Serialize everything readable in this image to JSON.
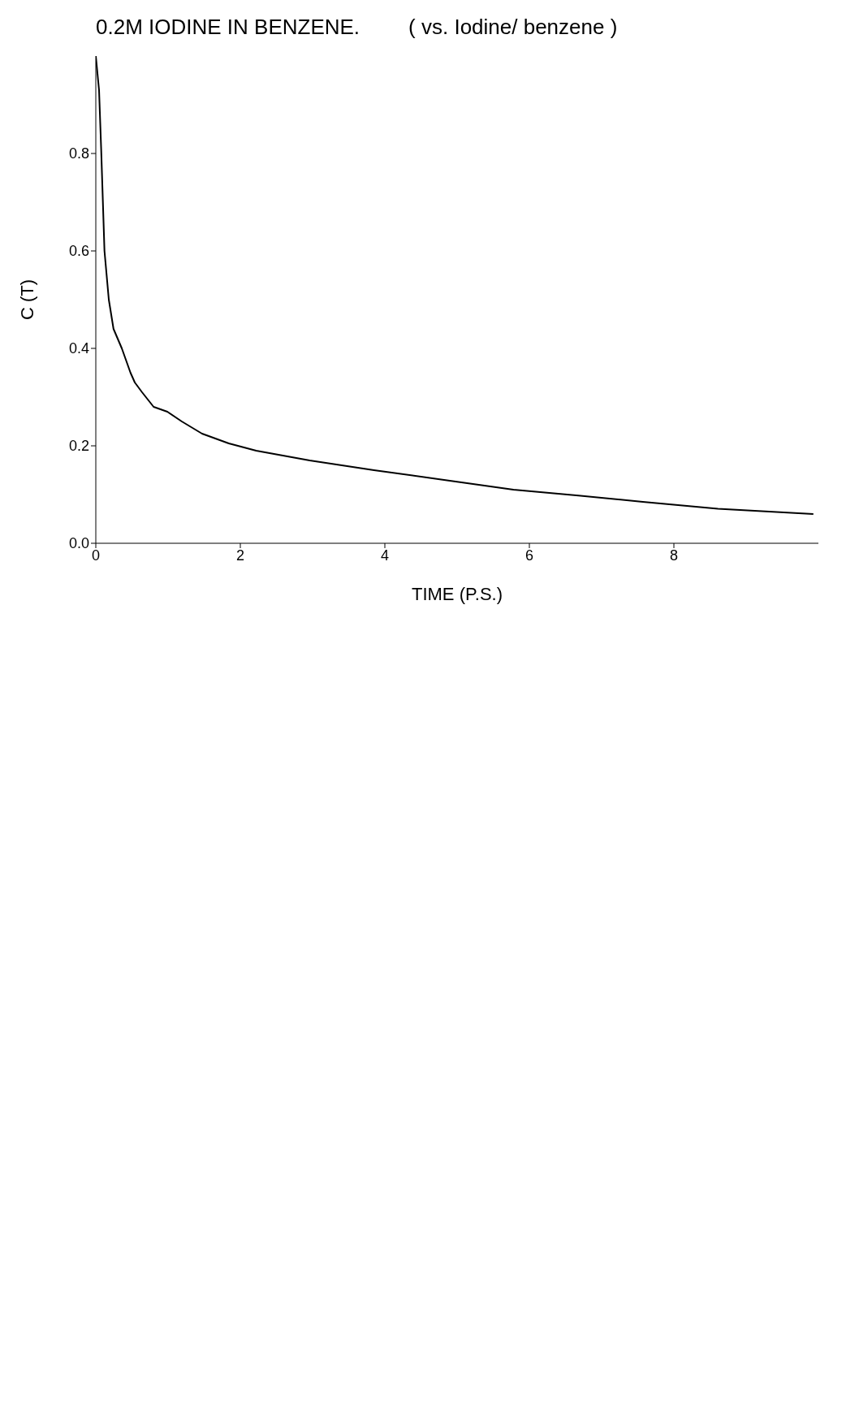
{
  "chart_data": {
    "type": "line",
    "title": "0.2M IODINE IN BENZENE.",
    "subtitle": "( vs. Iodine/ benzene )",
    "xlabel": "TIME (P.S.)",
    "ylabel": "C (T)",
    "x": [
      0,
      0.045,
      0.074,
      0.12,
      0.18,
      0.245,
      0.36,
      0.48,
      0.54,
      0.64,
      0.8,
      0.99,
      1.19,
      1.47,
      1.84,
      2.22,
      2.96,
      3.85,
      4.82,
      5.78,
      6.68,
      7.57,
      8.61,
      9.93
    ],
    "series": [
      {
        "color": "#000000",
        "values": [
          1.0,
          0.93,
          0.81,
          0.6,
          0.5,
          0.44,
          0.4,
          0.35,
          0.33,
          0.31,
          0.28,
          0.27,
          0.25,
          0.225,
          0.205,
          0.19,
          0.17,
          0.15,
          0.13,
          0.11,
          0.098,
          0.085,
          0.071,
          0.06
        ]
      }
    ],
    "xlim": [
      0,
      10
    ],
    "xticks": [
      0,
      2,
      4,
      6,
      8
    ],
    "ylim": [
      0,
      1
    ],
    "yticks": [
      {
        "value": 0,
        "label": "0.0"
      },
      {
        "value": 0.2,
        "label": "0.2"
      },
      {
        "value": 0.4,
        "label": "0.4"
      },
      {
        "value": 0.6,
        "label": "0.6"
      },
      {
        "value": 0.8,
        "label": "0.8"
      }
    ],
    "grid": false,
    "legend": false,
    "marker": "none",
    "line_style": "solid"
  }
}
